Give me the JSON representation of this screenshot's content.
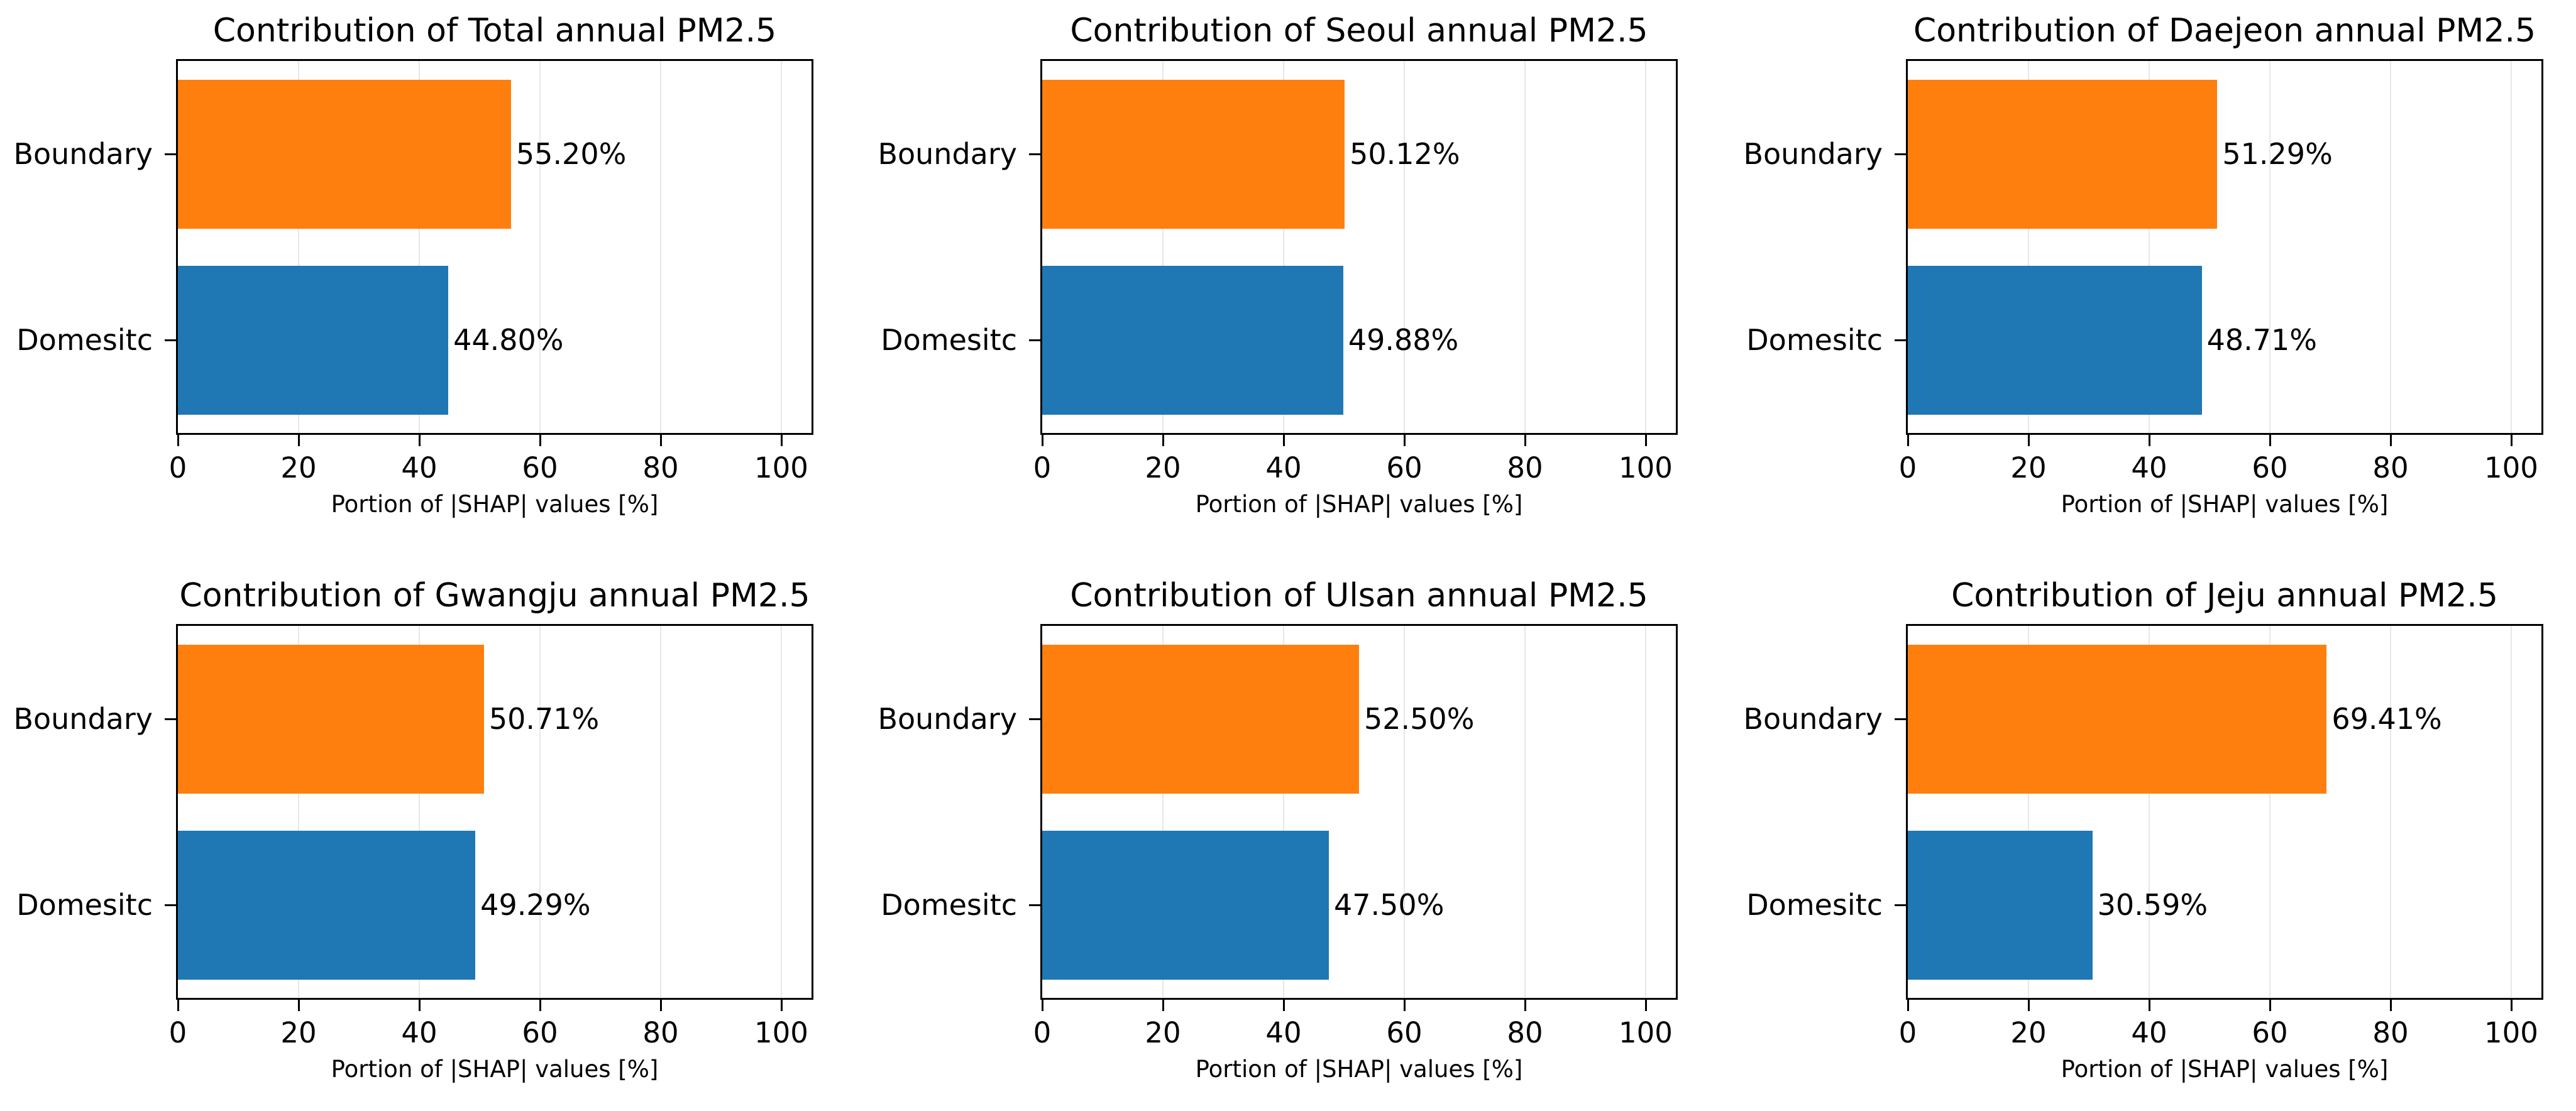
{
  "shared": {
    "xlabel": "Portion of |SHAP| values [%]",
    "x_ticks": [
      0,
      20,
      40,
      60,
      80,
      100
    ],
    "x_tick_labels": [
      "0",
      "20",
      "40",
      "60",
      "80",
      "100"
    ],
    "xlim": [
      0,
      105
    ],
    "grid": true,
    "legend": "none",
    "colors": {
      "boundary_bar": "#ff7f0e",
      "domestic_bar": "#1f77b4",
      "gridline": "#e7e7e7",
      "spine": "#000000",
      "text": "#000000",
      "background": "#ffffff"
    }
  },
  "chart_data": [
    {
      "type": "bar",
      "orientation": "horizontal",
      "title": "Contribution of Total annual PM2.5",
      "categories": [
        "Boundary",
        "Domesitc"
      ],
      "values": [
        55.2,
        44.8
      ],
      "value_labels": [
        "55.20%",
        "44.80%"
      ],
      "xlabel": "Portion of |SHAP| values [%]",
      "xlim": [
        0,
        105
      ]
    },
    {
      "type": "bar",
      "orientation": "horizontal",
      "title": "Contribution of Seoul annual PM2.5",
      "categories": [
        "Boundary",
        "Domesitc"
      ],
      "values": [
        50.12,
        49.88
      ],
      "value_labels": [
        "50.12%",
        "49.88%"
      ],
      "xlabel": "Portion of |SHAP| values [%]",
      "xlim": [
        0,
        105
      ]
    },
    {
      "type": "bar",
      "orientation": "horizontal",
      "title": "Contribution of Daejeon annual PM2.5",
      "categories": [
        "Boundary",
        "Domesitc"
      ],
      "values": [
        51.29,
        48.71
      ],
      "value_labels": [
        "51.29%",
        "48.71%"
      ],
      "xlabel": "Portion of |SHAP| values [%]",
      "xlim": [
        0,
        105
      ]
    },
    {
      "type": "bar",
      "orientation": "horizontal",
      "title": "Contribution of Gwangju annual PM2.5",
      "categories": [
        "Boundary",
        "Domesitc"
      ],
      "values": [
        50.71,
        49.29
      ],
      "value_labels": [
        "50.71%",
        "49.29%"
      ],
      "xlabel": "Portion of |SHAP| values [%]",
      "xlim": [
        0,
        105
      ]
    },
    {
      "type": "bar",
      "orientation": "horizontal",
      "title": "Contribution of Ulsan annual PM2.5",
      "categories": [
        "Boundary",
        "Domesitc"
      ],
      "values": [
        52.5,
        47.5
      ],
      "value_labels": [
        "52.50%",
        "47.50%"
      ],
      "xlabel": "Portion of |SHAP| values [%]",
      "xlim": [
        0,
        105
      ]
    },
    {
      "type": "bar",
      "orientation": "horizontal",
      "title": "Contribution of Jeju annual PM2.5",
      "categories": [
        "Boundary",
        "Domesitc"
      ],
      "values": [
        69.41,
        30.59
      ],
      "value_labels": [
        "69.41%",
        "30.59%"
      ],
      "xlabel": "Portion of |SHAP| values [%]",
      "xlim": [
        0,
        105
      ]
    }
  ]
}
